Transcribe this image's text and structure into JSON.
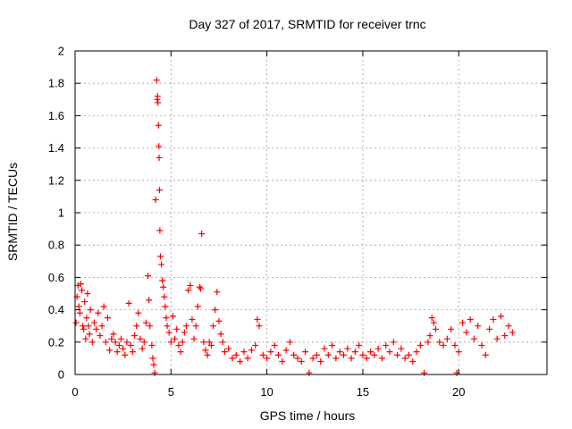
{
  "chart_data": {
    "type": "scatter",
    "title": "Day 327 of 2017, SRMTID for receiver trnc",
    "xlabel": "GPS time / hours",
    "ylabel": "SRMTID / TECUs",
    "xlim": [
      0,
      24.6
    ],
    "ylim": [
      0,
      2
    ],
    "grid": true,
    "x_ticks": [
      0,
      5,
      10,
      15,
      20
    ],
    "x_tick_labels": [
      "0",
      "5",
      "10",
      "15",
      "20"
    ],
    "y_ticks": [
      0,
      0.2,
      0.4,
      0.6,
      0.8,
      1,
      1.2,
      1.4,
      1.6,
      1.8,
      2
    ],
    "y_tick_labels": [
      "0",
      "0.2",
      "0.4",
      "0.6",
      "0.8",
      "1",
      "1.2",
      "1.4",
      "1.6",
      "1.8",
      "2"
    ],
    "marker": "plus",
    "marker_color": "#ff0000",
    "series": [
      {
        "name": "SRMTID",
        "points": [
          [
            0.05,
            0.32
          ],
          [
            0.1,
            0.48
          ],
          [
            0.15,
            0.55
          ],
          [
            0.2,
            0.42
          ],
          [
            0.25,
            0.38
          ],
          [
            0.3,
            0.56
          ],
          [
            0.35,
            0.52
          ],
          [
            0.4,
            0.3
          ],
          [
            0.45,
            0.28
          ],
          [
            0.5,
            0.45
          ],
          [
            0.55,
            0.22
          ],
          [
            0.6,
            0.35
          ],
          [
            0.65,
            0.5
          ],
          [
            0.7,
            0.3
          ],
          [
            0.75,
            0.25
          ],
          [
            0.8,
            0.4
          ],
          [
            0.9,
            0.2
          ],
          [
            1.0,
            0.32
          ],
          [
            1.1,
            0.28
          ],
          [
            1.2,
            0.38
          ],
          [
            1.3,
            0.24
          ],
          [
            1.4,
            0.3
          ],
          [
            1.5,
            0.42
          ],
          [
            1.6,
            0.2
          ],
          [
            1.7,
            0.35
          ],
          [
            1.8,
            0.15
          ],
          [
            1.9,
            0.22
          ],
          [
            2.0,
            0.25
          ],
          [
            2.1,
            0.2
          ],
          [
            2.2,
            0.14
          ],
          [
            2.3,
            0.18
          ],
          [
            2.4,
            0.22
          ],
          [
            2.5,
            0.16
          ],
          [
            2.6,
            0.12
          ],
          [
            2.7,
            0.2
          ],
          [
            2.8,
            0.44
          ],
          [
            2.9,
            0.18
          ],
          [
            3.0,
            0.14
          ],
          [
            3.1,
            0.24
          ],
          [
            3.2,
            0.3
          ],
          [
            3.3,
            0.38
          ],
          [
            3.4,
            0.22
          ],
          [
            3.5,
            0.16
          ],
          [
            3.6,
            0.2
          ],
          [
            3.7,
            0.32
          ],
          [
            3.8,
            0.61
          ],
          [
            3.85,
            0.46
          ],
          [
            3.9,
            0.3
          ],
          [
            4.0,
            0.18
          ],
          [
            4.05,
            0.1
          ],
          [
            4.1,
            0.06
          ],
          [
            4.15,
            0.01
          ],
          [
            4.2,
            1.08
          ],
          [
            4.25,
            1.82
          ],
          [
            4.28,
            1.7
          ],
          [
            4.3,
            1.72
          ],
          [
            4.32,
            1.68
          ],
          [
            4.35,
            1.54
          ],
          [
            4.37,
            1.41
          ],
          [
            4.38,
            1.34
          ],
          [
            4.4,
            1.14
          ],
          [
            4.42,
            0.89
          ],
          [
            4.45,
            0.73
          ],
          [
            4.5,
            0.68
          ],
          [
            4.55,
            0.58
          ],
          [
            4.6,
            0.54
          ],
          [
            4.65,
            0.48
          ],
          [
            4.7,
            0.42
          ],
          [
            4.75,
            0.35
          ],
          [
            4.8,
            0.3
          ],
          [
            4.9,
            0.26
          ],
          [
            5.0,
            0.2
          ],
          [
            5.1,
            0.36
          ],
          [
            5.2,
            0.22
          ],
          [
            5.3,
            0.28
          ],
          [
            5.4,
            0.18
          ],
          [
            5.5,
            0.14
          ],
          [
            5.6,
            0.2
          ],
          [
            5.7,
            0.26
          ],
          [
            5.8,
            0.3
          ],
          [
            5.9,
            0.52
          ],
          [
            6.0,
            0.55
          ],
          [
            6.1,
            0.34
          ],
          [
            6.2,
            0.22
          ],
          [
            6.3,
            0.3
          ],
          [
            6.4,
            0.42
          ],
          [
            6.5,
            0.54
          ],
          [
            6.55,
            0.53
          ],
          [
            6.6,
            0.87
          ],
          [
            6.7,
            0.2
          ],
          [
            6.8,
            0.15
          ],
          [
            6.9,
            0.12
          ],
          [
            7.0,
            0.2
          ],
          [
            7.1,
            0.18
          ],
          [
            7.2,
            0.3
          ],
          [
            7.3,
            0.4
          ],
          [
            7.4,
            0.51
          ],
          [
            7.5,
            0.33
          ],
          [
            7.6,
            0.25
          ],
          [
            7.7,
            0.2
          ],
          [
            7.8,
            0.14
          ],
          [
            8.0,
            0.16
          ],
          [
            8.2,
            0.1
          ],
          [
            8.4,
            0.12
          ],
          [
            8.6,
            0.08
          ],
          [
            8.8,
            0.14
          ],
          [
            9.0,
            0.1
          ],
          [
            9.2,
            0.15
          ],
          [
            9.4,
            0.18
          ],
          [
            9.5,
            0.34
          ],
          [
            9.6,
            0.3
          ],
          [
            9.8,
            0.12
          ],
          [
            10.0,
            0.1
          ],
          [
            10.2,
            0.14
          ],
          [
            10.4,
            0.18
          ],
          [
            10.6,
            0.12
          ],
          [
            10.8,
            0.08
          ],
          [
            11.0,
            0.15
          ],
          [
            11.2,
            0.2
          ],
          [
            11.4,
            0.12
          ],
          [
            11.6,
            0.1
          ],
          [
            11.8,
            0.08
          ],
          [
            12.0,
            0.14
          ],
          [
            12.2,
            0.01
          ],
          [
            12.4,
            0.1
          ],
          [
            12.6,
            0.12
          ],
          [
            12.8,
            0.08
          ],
          [
            13.0,
            0.16
          ],
          [
            13.2,
            0.12
          ],
          [
            13.4,
            0.18
          ],
          [
            13.6,
            0.1
          ],
          [
            13.8,
            0.14
          ],
          [
            14.0,
            0.12
          ],
          [
            14.2,
            0.16
          ],
          [
            14.4,
            0.1
          ],
          [
            14.6,
            0.14
          ],
          [
            14.8,
            0.18
          ],
          [
            15.0,
            0.12
          ],
          [
            15.2,
            0.1
          ],
          [
            15.4,
            0.14
          ],
          [
            15.6,
            0.12
          ],
          [
            15.8,
            0.16
          ],
          [
            16.0,
            0.1
          ],
          [
            16.2,
            0.18
          ],
          [
            16.4,
            0.14
          ],
          [
            16.6,
            0.2
          ],
          [
            16.8,
            0.12
          ],
          [
            17.0,
            0.16
          ],
          [
            17.2,
            0.1
          ],
          [
            17.4,
            0.12
          ],
          [
            17.6,
            0.08
          ],
          [
            17.8,
            0.14
          ],
          [
            18.0,
            0.18
          ],
          [
            18.2,
            0.01
          ],
          [
            18.4,
            0.2
          ],
          [
            18.5,
            0.24
          ],
          [
            18.6,
            0.35
          ],
          [
            18.7,
            0.32
          ],
          [
            18.8,
            0.28
          ],
          [
            19.0,
            0.2
          ],
          [
            19.2,
            0.18
          ],
          [
            19.4,
            0.22
          ],
          [
            19.6,
            0.28
          ],
          [
            19.8,
            0.18
          ],
          [
            19.9,
            0.01
          ],
          [
            20.0,
            0.14
          ],
          [
            20.2,
            0.32
          ],
          [
            20.4,
            0.26
          ],
          [
            20.6,
            0.34
          ],
          [
            20.8,
            0.22
          ],
          [
            21.0,
            0.3
          ],
          [
            21.2,
            0.18
          ],
          [
            21.4,
            0.12
          ],
          [
            21.6,
            0.28
          ],
          [
            21.8,
            0.34
          ],
          [
            22.0,
            0.22
          ],
          [
            22.2,
            0.36
          ],
          [
            22.4,
            0.24
          ],
          [
            22.6,
            0.3
          ],
          [
            22.8,
            0.26
          ]
        ]
      }
    ]
  }
}
